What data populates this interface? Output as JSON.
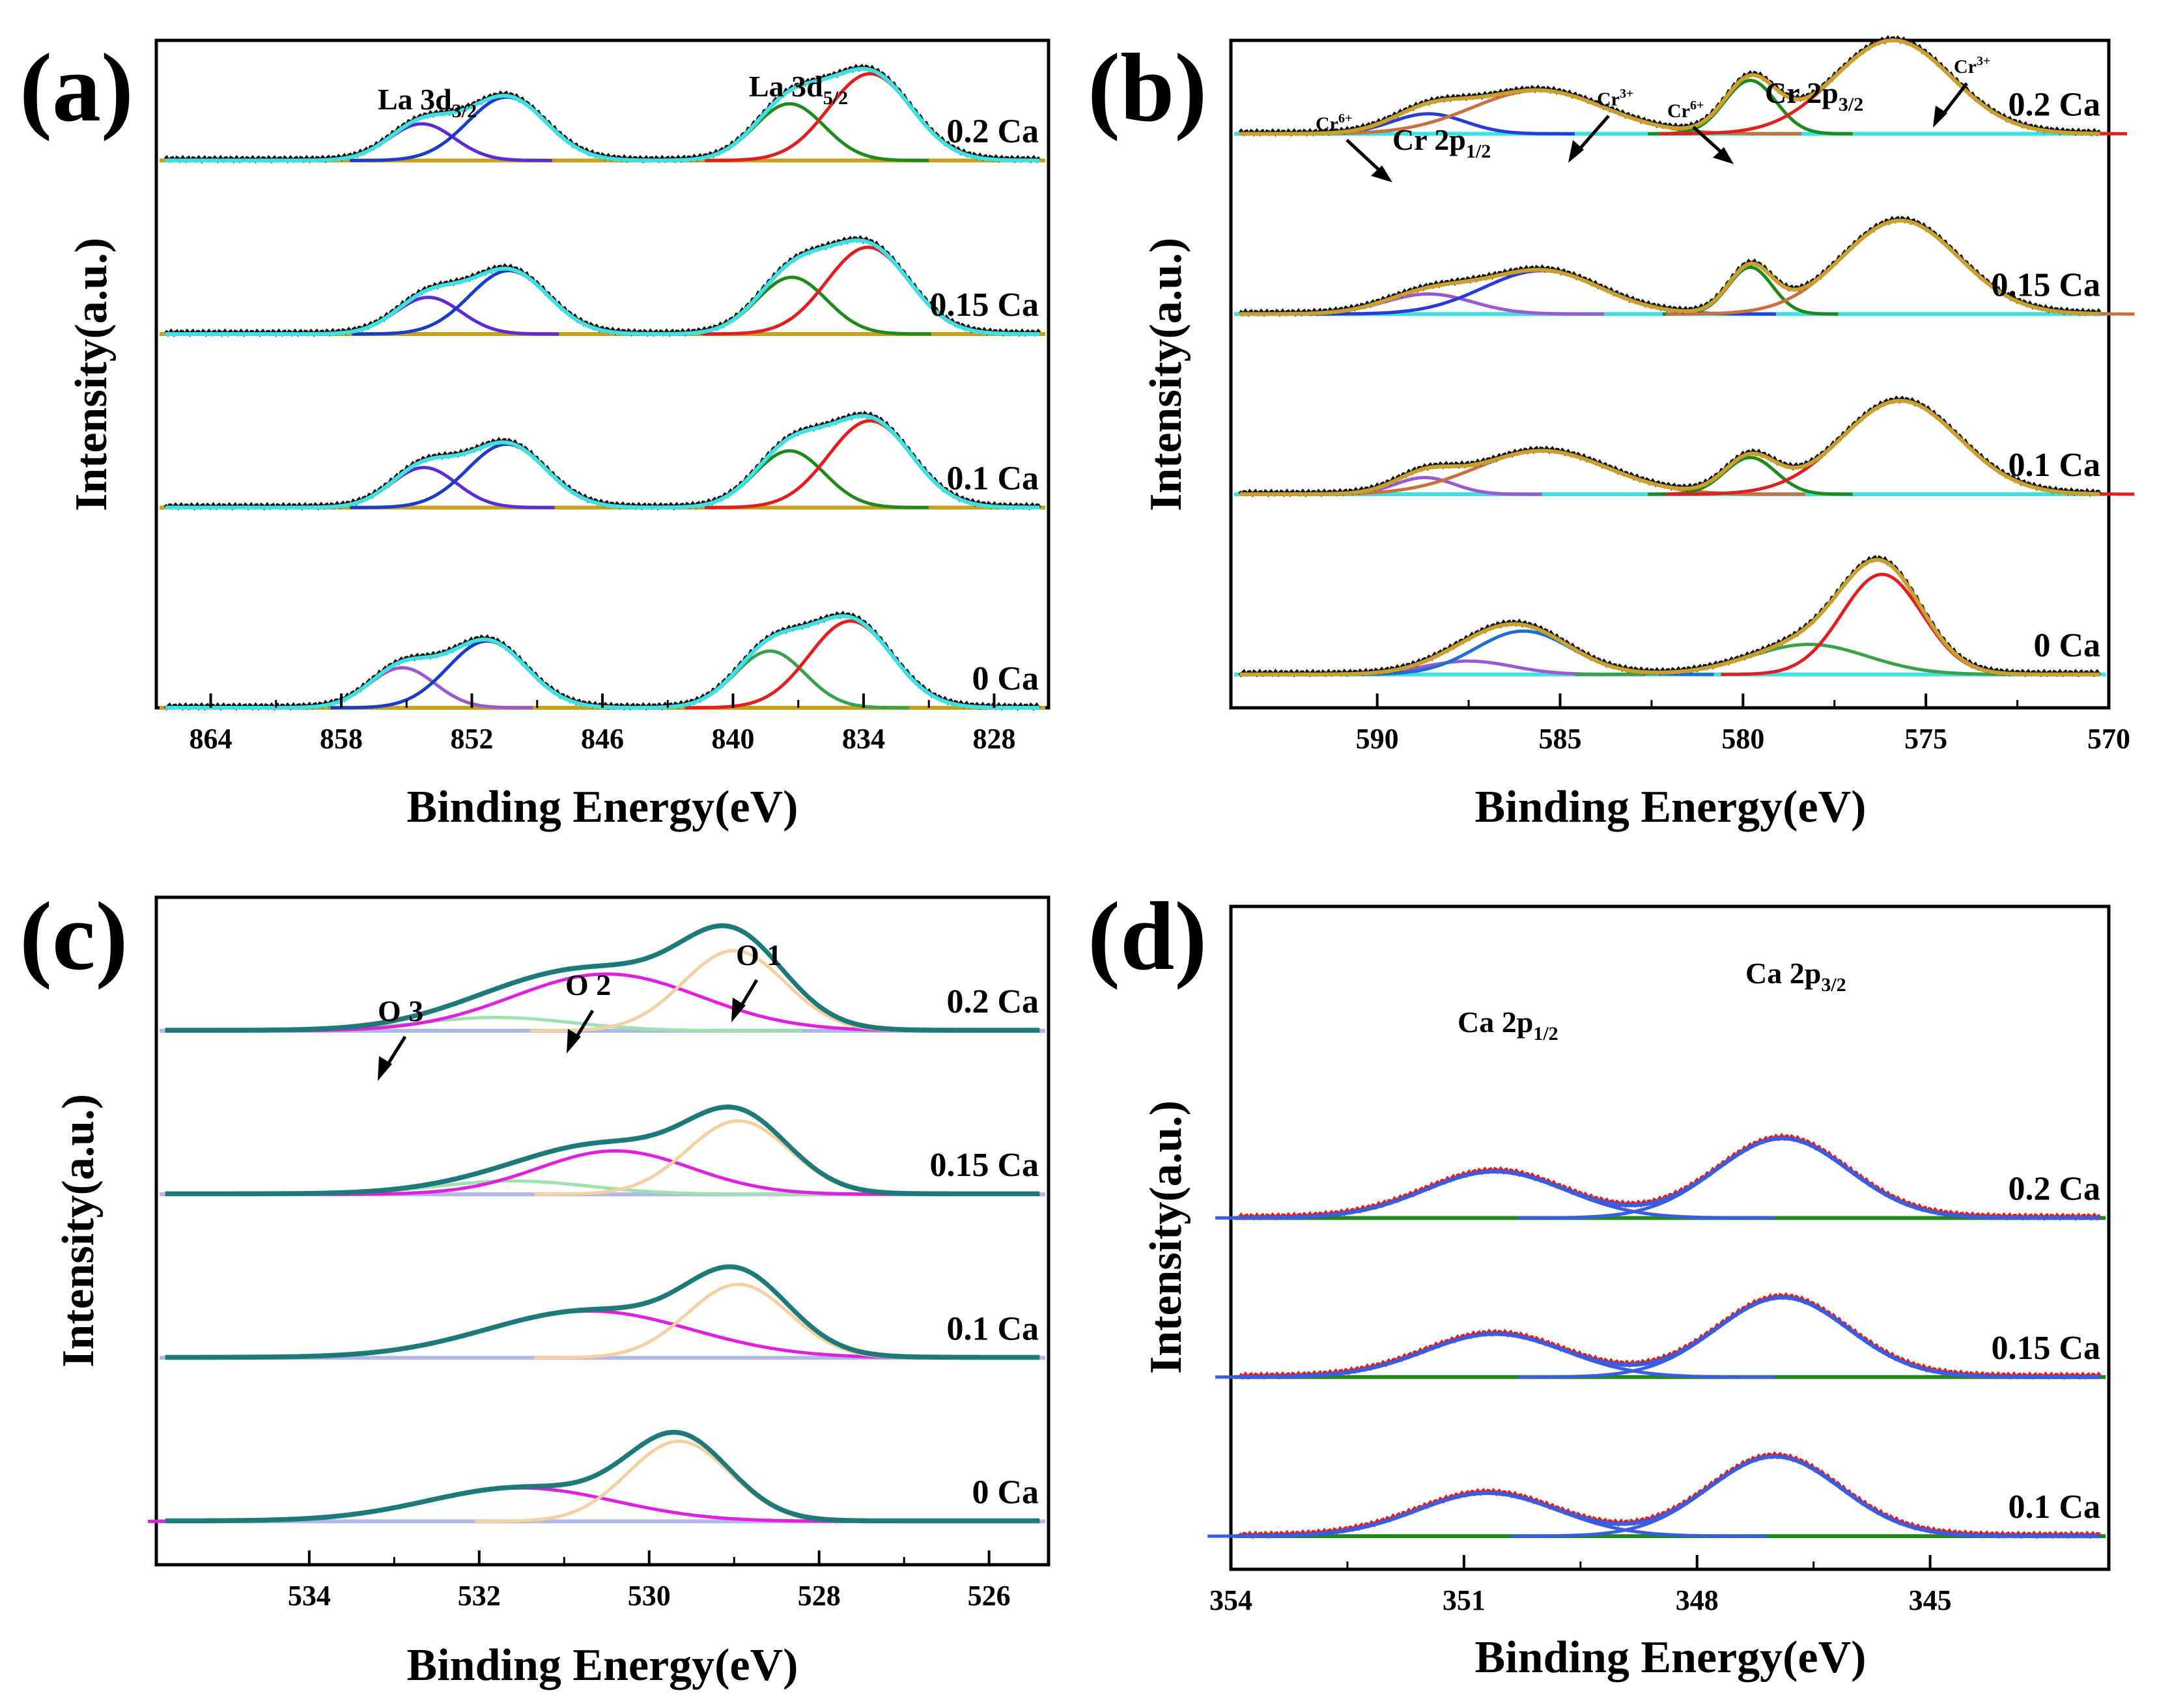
{
  "chart_data": [
    {
      "panel": "(a)",
      "type": "line",
      "xlabel": "Binding Energy(eV)",
      "ylabel": "Intensity(a.u.)",
      "xlim": [
        866.5,
        825.5
      ],
      "xticks": [
        "864",
        "858",
        "852",
        "846",
        "840",
        "834",
        "828"
      ],
      "xtick_values": [
        864,
        858,
        852,
        846,
        840,
        834,
        828
      ],
      "series_labels": [
        "0.2 Ca",
        "0.15 Ca",
        "0.1 Ca",
        "0 Ca"
      ],
      "annotations": [
        {
          "text": "La 3d",
          "sub": "3/2",
          "x": 851
        },
        {
          "text": "La 3d",
          "sub": "5/2",
          "x": 836
        }
      ],
      "baseline_offsets": [
        0.82,
        0.56,
        0.3,
        0.0
      ],
      "peaks": [
        {
          "series": "0.2 Ca",
          "components": [
            {
              "center": 854.3,
              "height": 0.055,
              "width": 1.5,
              "color": "#5b2bd6"
            },
            {
              "center": 850.4,
              "height": 0.095,
              "width": 1.8,
              "color": "#1a3cc8"
            },
            {
              "center": 837.4,
              "height": 0.085,
              "width": 1.6,
              "color": "#1e8a1e"
            },
            {
              "center": 833.7,
              "height": 0.13,
              "width": 1.9,
              "color": "#e02020"
            }
          ]
        },
        {
          "series": "0.15 Ca",
          "components": [
            {
              "center": 854.0,
              "height": 0.055,
              "width": 1.5,
              "color": "#5b2bd6"
            },
            {
              "center": 850.3,
              "height": 0.095,
              "width": 1.8,
              "color": "#1a3cc8"
            },
            {
              "center": 837.3,
              "height": 0.085,
              "width": 1.6,
              "color": "#1e8a1e"
            },
            {
              "center": 833.8,
              "height": 0.13,
              "width": 1.9,
              "color": "#e02020"
            }
          ]
        },
        {
          "series": "0.1 Ca",
          "components": [
            {
              "center": 854.2,
              "height": 0.06,
              "width": 1.5,
              "color": "#5b2bd6"
            },
            {
              "center": 850.4,
              "height": 0.095,
              "width": 1.8,
              "color": "#1a3cc8"
            },
            {
              "center": 837.4,
              "height": 0.085,
              "width": 1.6,
              "color": "#1e8a1e"
            },
            {
              "center": 833.7,
              "height": 0.13,
              "width": 1.9,
              "color": "#e02020"
            }
          ]
        },
        {
          "series": "0 Ca",
          "components": [
            {
              "center": 855.2,
              "height": 0.06,
              "width": 1.5,
              "color": "#9b59d0"
            },
            {
              "center": 851.3,
              "height": 0.1,
              "width": 1.8,
              "color": "#1a3cc8"
            },
            {
              "center": 838.3,
              "height": 0.085,
              "width": 1.6,
              "color": "#3aa04a"
            },
            {
              "center": 834.6,
              "height": 0.13,
              "width": 1.9,
              "color": "#e02020"
            }
          ]
        }
      ],
      "envelope_color": "#40e0e0",
      "raw_color": "#111111",
      "baseline_color": "#c8a020"
    },
    {
      "panel": "(b)",
      "type": "line",
      "xlabel": "Binding Energy(eV)",
      "ylabel": "Intensity(a.u.)",
      "xlim": [
        594,
        570
      ],
      "xticks": [
        "590",
        "585",
        "580",
        "575",
        "570"
      ],
      "xtick_values": [
        590,
        585,
        580,
        575,
        570
      ],
      "series_labels": [
        "0.2 Ca",
        "0.15 Ca",
        "0.1 Ca",
        "0 Ca"
      ],
      "annotations": [
        {
          "text": "Cr 2p",
          "sub": "1/2"
        },
        {
          "text": "Cr 2p",
          "sub": "3/2"
        },
        {
          "text": "Cr",
          "sup": "6+"
        },
        {
          "text": "Cr",
          "sup": "3+"
        },
        {
          "text": "Cr",
          "sup": "6+"
        },
        {
          "text": "Cr",
          "sup": "3+"
        }
      ],
      "baseline_offsets": [
        0.86,
        0.59,
        0.32,
        0.05
      ],
      "peaks": [
        {
          "series": "0.2 Ca",
          "components": [
            {
              "center": 588.6,
              "height": 0.03,
              "width": 1.0,
              "color": "#2a3cd8"
            },
            {
              "center": 585.6,
              "height": 0.065,
              "width": 1.8,
              "color": "#c87040"
            },
            {
              "center": 579.8,
              "height": 0.08,
              "width": 0.7,
              "color": "#1e8a1e"
            },
            {
              "center": 575.9,
              "height": 0.14,
              "width": 1.6,
              "color": "#e02020"
            }
          ]
        },
        {
          "series": "0.15 Ca",
          "components": [
            {
              "center": 588.6,
              "height": 0.03,
              "width": 1.2,
              "color": "#9b59d0"
            },
            {
              "center": 585.5,
              "height": 0.065,
              "width": 1.6,
              "color": "#2a3cd8"
            },
            {
              "center": 579.8,
              "height": 0.07,
              "width": 0.6,
              "color": "#1e8a1e"
            },
            {
              "center": 575.7,
              "height": 0.14,
              "width": 1.6,
              "color": "#c87040"
            }
          ]
        },
        {
          "series": "0.1 Ca",
          "components": [
            {
              "center": 588.7,
              "height": 0.025,
              "width": 0.8,
              "color": "#9b59d0"
            },
            {
              "center": 585.5,
              "height": 0.065,
              "width": 1.8,
              "color": "#c87040"
            },
            {
              "center": 579.8,
              "height": 0.055,
              "width": 0.7,
              "color": "#1e8a1e"
            },
            {
              "center": 575.7,
              "height": 0.14,
              "width": 1.6,
              "color": "#e02020"
            }
          ]
        },
        {
          "series": "0 Ca",
          "components": [
            {
              "center": 587.5,
              "height": 0.02,
              "width": 1.2,
              "color": "#9b59d0"
            },
            {
              "center": 586.0,
              "height": 0.065,
              "width": 1.3,
              "color": "#1a6fd0"
            },
            {
              "center": 578.2,
              "height": 0.045,
              "width": 1.6,
              "color": "#3aa04a"
            },
            {
              "center": 576.2,
              "height": 0.15,
              "width": 1.1,
              "color": "#e02020"
            }
          ]
        }
      ],
      "envelope_color": "#c8a030",
      "raw_color": "#111111",
      "baseline_color": "#40e0e0"
    },
    {
      "panel": "(c)",
      "type": "line",
      "xlabel": "Binding Energy(eV)",
      "ylabel": "Intensity(a.u.)",
      "xlim": [
        535.8,
        525.3
      ],
      "xticks": [
        "534",
        "532",
        "530",
        "528",
        "526"
      ],
      "xtick_values": [
        534,
        532,
        530,
        528,
        526
      ],
      "series_labels": [
        "0.2 Ca",
        "0.15 Ca",
        "0.1 Ca",
        "0 Ca"
      ],
      "annotations": [
        {
          "text": "O 3"
        },
        {
          "text": "O 2"
        },
        {
          "text": "O 1"
        }
      ],
      "baseline_offsets": [
        0.8,
        0.555,
        0.31,
        0.065
      ],
      "peaks": [
        {
          "series": "0.2 Ca",
          "components": [
            {
              "center": 531.8,
              "height": 0.02,
              "width": 0.9,
              "color": "#a0e0b0"
            },
            {
              "center": 530.5,
              "height": 0.085,
              "width": 1.1,
              "color": "#e020e0"
            },
            {
              "center": 529.0,
              "height": 0.12,
              "width": 0.6,
              "color": "#f5d0a0"
            }
          ]
        },
        {
          "series": "0.15 Ca",
          "components": [
            {
              "center": 531.6,
              "height": 0.02,
              "width": 0.9,
              "color": "#a0e0b0"
            },
            {
              "center": 530.4,
              "height": 0.065,
              "width": 0.9,
              "color": "#e020e0"
            },
            {
              "center": 528.95,
              "height": 0.11,
              "width": 0.6,
              "color": "#f5d0a0"
            }
          ]
        },
        {
          "series": "0.1 Ca",
          "components": [
            {
              "center": 530.7,
              "height": 0.07,
              "width": 1.2,
              "color": "#e020e0"
            },
            {
              "center": 528.95,
              "height": 0.11,
              "width": 0.6,
              "color": "#f5d0a0"
            }
          ]
        },
        {
          "series": "0 Ca",
          "components": [
            {
              "center": 531.5,
              "height": 0.05,
              "width": 1.1,
              "color": "#e020e0"
            },
            {
              "center": 529.65,
              "height": 0.12,
              "width": 0.6,
              "color": "#f5d0a0"
            }
          ]
        }
      ],
      "envelope_color": "#1e7a78",
      "raw_color": "#1e7a78",
      "baseline_color": "#b0b8e8"
    },
    {
      "panel": "(d)",
      "type": "line",
      "xlabel": "Binding Energy(eV)",
      "ylabel": "Intensity(a.u.)",
      "xlim": [
        354,
        342.7
      ],
      "xticks": [
        "354",
        "351",
        "348",
        "345"
      ],
      "xtick_values": [
        354,
        351,
        348,
        345
      ],
      "series_labels": [
        "0.2 Ca",
        "0.15 Ca",
        "0.1 Ca"
      ],
      "annotations": [
        {
          "text": "Ca 2p",
          "sub": "1/2"
        },
        {
          "text": "Ca 2p",
          "sub": "3/2"
        }
      ],
      "baseline_offsets": [
        0.53,
        0.29,
        0.05
      ],
      "peaks": [
        {
          "series": "0.2 Ca",
          "components": [
            {
              "center": 350.6,
              "height": 0.07,
              "width": 0.9,
              "color": "#3a5ce0"
            },
            {
              "center": 346.9,
              "height": 0.12,
              "width": 0.85,
              "color": "#3a5ce0"
            }
          ]
        },
        {
          "series": "0.15 Ca",
          "components": [
            {
              "center": 350.6,
              "height": 0.065,
              "width": 0.9,
              "color": "#3a5ce0"
            },
            {
              "center": 346.9,
              "height": 0.12,
              "width": 0.85,
              "color": "#3a5ce0"
            }
          ]
        },
        {
          "series": "0.1 Ca",
          "components": [
            {
              "center": 350.7,
              "height": 0.065,
              "width": 0.9,
              "color": "#3a5ce0"
            },
            {
              "center": 347.0,
              "height": 0.12,
              "width": 0.85,
              "color": "#3a5ce0"
            }
          ]
        }
      ],
      "envelope_color": "#3a5ce0",
      "raw_color": "#e02020",
      "baseline_color": "#1e8a1e"
    }
  ]
}
